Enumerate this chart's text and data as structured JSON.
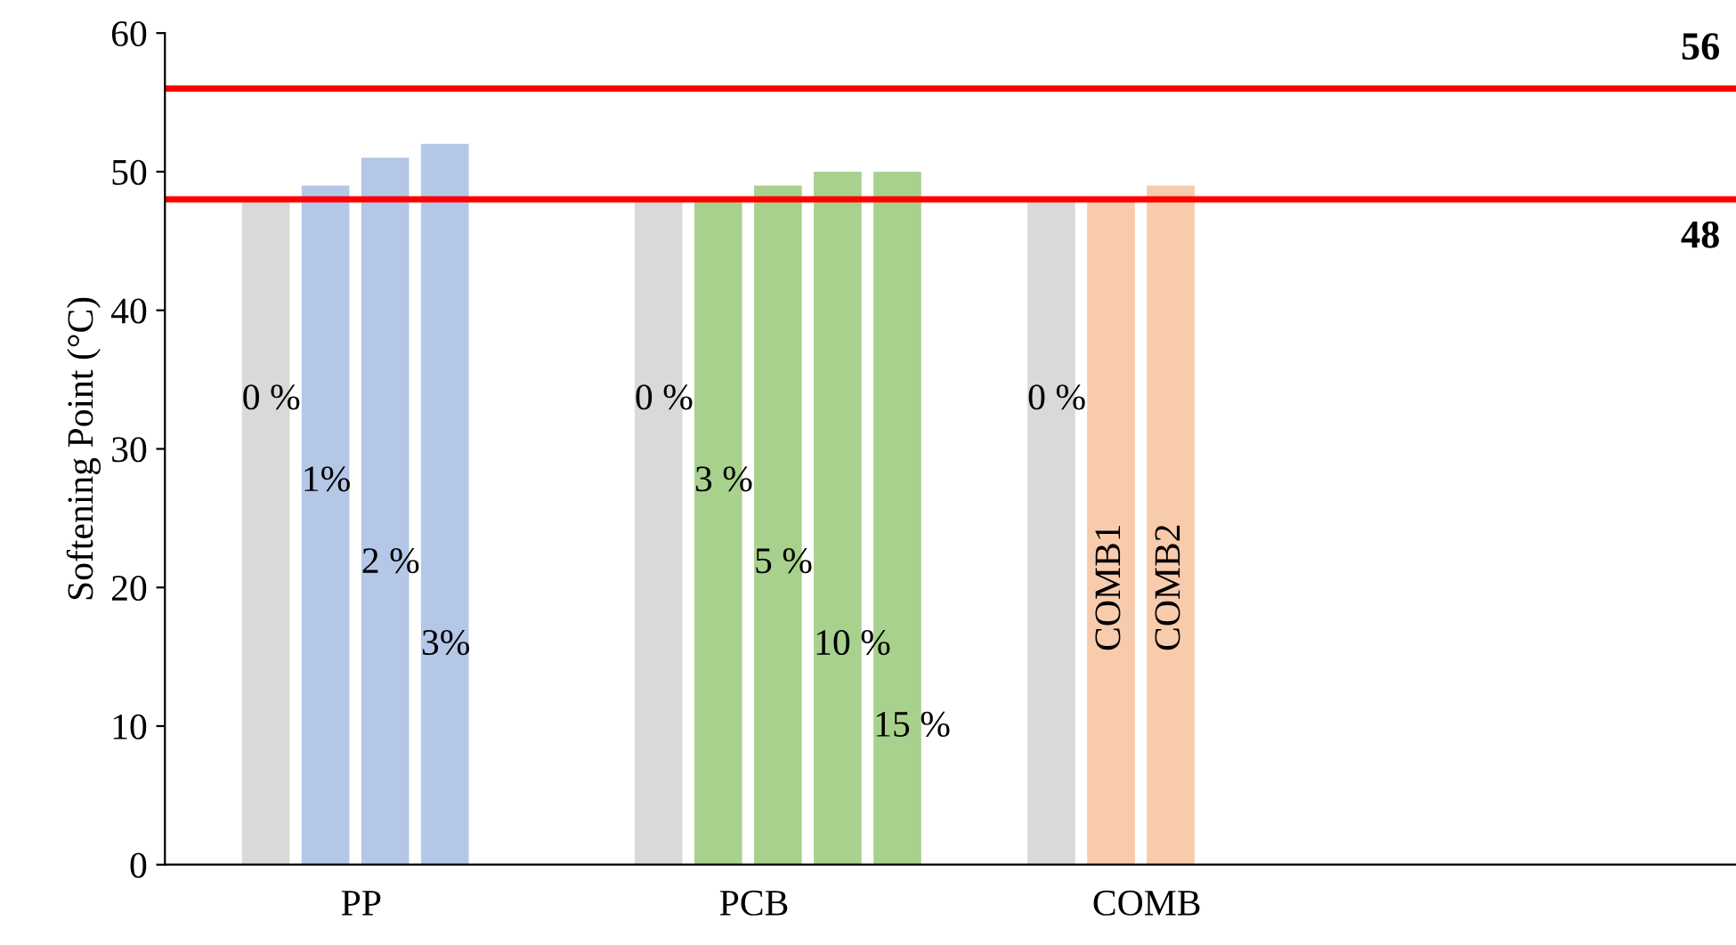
{
  "chart_data": {
    "type": "bar",
    "ylabel": "Softening Point (°C)",
    "categories": [
      "PP",
      "PCB",
      "COMB",
      null
    ],
    "series": [
      {
        "colors": [
          "#d9d9d9",
          "#d9d9d9",
          "#d9d9d9",
          null
        ],
        "values": [
          48,
          48,
          48,
          null
        ]
      },
      {
        "colors": [
          "#b4c7e7",
          "#a9d18e",
          "#f8cbad",
          null
        ],
        "values": [
          49,
          48,
          48,
          null
        ]
      },
      {
        "colors": [
          "#b4c7e7",
          "#a9d18e",
          "#f8cbad",
          null
        ],
        "values": [
          51,
          49,
          49,
          null
        ]
      },
      {
        "colors": [
          "#b4c7e7",
          "#a9d18e",
          null,
          null
        ],
        "values": [
          52,
          50,
          null,
          null
        ]
      },
      {
        "colors": [
          null,
          "#a9d18e",
          null,
          null
        ],
        "values": [
          null,
          50,
          null,
          null
        ]
      }
    ],
    "annotations": [
      "0 %",
      "1%",
      "2 %",
      "3%",
      "0 %",
      "3 %",
      "5 %",
      "10 %",
      "15 %",
      "0 %",
      "COMB1",
      "COMB2"
    ],
    "ylim": [
      0,
      60
    ],
    "yticks": [
      0,
      10,
      20,
      30,
      40,
      50,
      60
    ],
    "ref_lines": [
      {
        "axis": "y",
        "value": 56,
        "label": "56",
        "color": "#ff0000"
      },
      {
        "axis": "y",
        "value": 48,
        "label": "48",
        "color": "#ff0000"
      }
    ],
    "grid": false,
    "legend": false
  }
}
